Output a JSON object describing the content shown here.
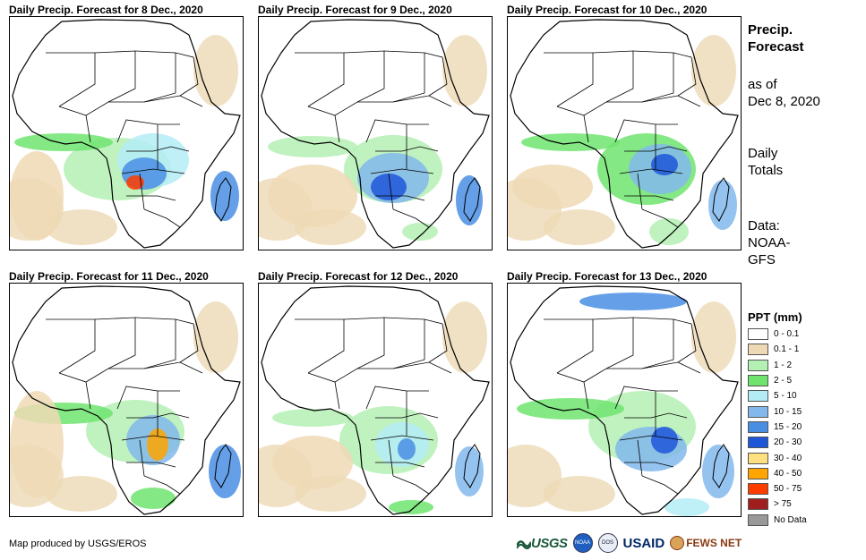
{
  "panels": [
    {
      "title": "Daily Precip. Forecast for 8 Dec., 2020"
    },
    {
      "title": "Daily Precip. Forecast for 9 Dec., 2020"
    },
    {
      "title": "Daily Precip. Forecast for 10 Dec., 2020"
    },
    {
      "title": "Daily Precip. Forecast for 11 Dec., 2020"
    },
    {
      "title": "Daily Precip. Forecast for 12 Dec., 2020"
    },
    {
      "title": "Daily Precip. Forecast for 13 Dec., 2020"
    }
  ],
  "sidebar": {
    "heading_line1": "Precip.",
    "heading_line2": "Forecast",
    "asof_line1": "as of",
    "asof_line2": "Dec 8, 2020",
    "totals_line1": "Daily",
    "totals_line2": "Totals",
    "data_line1": "Data:",
    "data_line2": "NOAA-",
    "data_line3": "GFS"
  },
  "legend": {
    "title": "PPT (mm)",
    "items": [
      {
        "label": "0 - 0.1",
        "color": "#ffffff"
      },
      {
        "label": "0.1 - 1",
        "color": "#eed9b5"
      },
      {
        "label": "1 - 2",
        "color": "#b4f0b4"
      },
      {
        "label": "2 - 5",
        "color": "#6ee46e"
      },
      {
        "label": "5 - 10",
        "color": "#b4ecf6"
      },
      {
        "label": "10 - 15",
        "color": "#82b8ec"
      },
      {
        "label": "15 - 20",
        "color": "#4a8ee4"
      },
      {
        "label": "20 - 30",
        "color": "#1e56d8"
      },
      {
        "label": "30 - 40",
        "color": "#ffe080"
      },
      {
        "label": "40 - 50",
        "color": "#ffa400"
      },
      {
        "label": "50 - 75",
        "color": "#ff3c00"
      },
      {
        "label": "> 75",
        "color": "#a01e1e"
      },
      {
        "label": "No Data",
        "color": "#999999"
      }
    ]
  },
  "footer": {
    "credit": "Map produced by USGS/EROS",
    "logo_usgs": "USGS",
    "logo_noaa": "NOAA",
    "logo_dos": "DOS",
    "logo_usaid": "USAID",
    "logo_fews": "FEWS NET"
  }
}
